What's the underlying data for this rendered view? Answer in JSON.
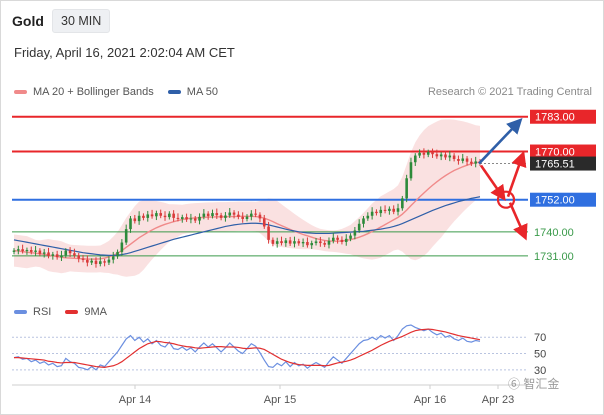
{
  "header": {
    "symbol": "Gold",
    "timeframe": "30 MIN",
    "datetime": "Friday, April 16, 2021 2:02:04 AM CET"
  },
  "legend": {
    "items": [
      {
        "label": "MA 20 + Bollinger Bands",
        "color": "#f08a8a"
      },
      {
        "label": "MA 50",
        "color": "#2f5fa8"
      }
    ]
  },
  "rsi_legend": {
    "items": [
      {
        "label": "RSI",
        "color": "#6b8fe0"
      },
      {
        "label": "9MA",
        "color": "#e23030"
      }
    ]
  },
  "credit": "Research © 2021 Trading Central",
  "watermark": "⑥ 智汇金",
  "colors": {
    "resistance": "#e8262a",
    "pivot": "#2f6fe0",
    "support": "#3a9a4a",
    "arrow_up": "#2f5fa8",
    "arrow_down": "#e8262a",
    "candle_up": "#2d8a3a",
    "candle_down": "#d93a3a"
  },
  "chart_data": {
    "type": "candlestick",
    "price_range": [
      1722,
      1790
    ],
    "x_tick_labels": [
      "Apr 14",
      "Apr 15",
      "Apr 16",
      "Apr 23"
    ],
    "levels": [
      {
        "label": "1783.00",
        "value": 1783.0,
        "kind": "resistance",
        "style": "badge"
      },
      {
        "label": "1770.00",
        "value": 1770.0,
        "kind": "resistance",
        "style": "badge"
      },
      {
        "label": "1765.51",
        "value": 1765.51,
        "kind": "current",
        "style": "badge-dark"
      },
      {
        "label": "1752.00",
        "value": 1752.0,
        "kind": "pivot",
        "style": "badge"
      },
      {
        "label": "1740.00",
        "value": 1740.0,
        "kind": "support",
        "style": "text"
      },
      {
        "label": "1731.00",
        "value": 1731.0,
        "kind": "support",
        "style": "text"
      }
    ],
    "closes": [
      1733,
      1733.5,
      1732.8,
      1733.2,
      1732.5,
      1733,
      1731.8,
      1732.3,
      1731,
      1731.6,
      1730.5,
      1731.2,
      1733,
      1732,
      1731.2,
      1730,
      1729.5,
      1728.5,
      1729.2,
      1728,
      1729,
      1728.5,
      1729.6,
      1730.8,
      1732.5,
      1736,
      1741,
      1745,
      1744,
      1746,
      1745.2,
      1746.5,
      1745.8,
      1747,
      1746,
      1745.5,
      1746.8,
      1745.2,
      1744.8,
      1745.5,
      1744.6,
      1745,
      1744.2,
      1745.6,
      1746.8,
      1745.9,
      1747,
      1746.2,
      1745.2,
      1746.1,
      1747.2,
      1746.4,
      1745.6,
      1744.8,
      1745.7,
      1746.8,
      1746.4,
      1745,
      1742,
      1737,
      1735.5,
      1736.5,
      1735.8,
      1736.8,
      1735.6,
      1736.5,
      1735.7,
      1736.2,
      1735,
      1735.8,
      1736.4,
      1735.8,
      1735.2,
      1736.6,
      1737.8,
      1737,
      1736.2,
      1737.4,
      1738.6,
      1740.5,
      1743,
      1745,
      1746,
      1747.5,
      1747,
      1748.2,
      1747.8,
      1748.6,
      1747.5,
      1748.8,
      1752.5,
      1760,
      1766,
      1768.5,
      1769.5,
      1768.8,
      1769.8,
      1769,
      1768.2,
      1768.9,
      1767.8,
      1768.5,
      1767.2,
      1766.5,
      1767.4,
      1766.2,
      1765.5,
      1766.3,
      1765.51
    ],
    "ma20": [
      1733,
      1732.8,
      1732.6,
      1732.4,
      1732.2,
      1732,
      1731.8,
      1731.6,
      1731.3,
      1731,
      1730.8,
      1730.5,
      1730.3,
      1730.2,
      1730.1,
      1730,
      1729.9,
      1729.8,
      1729.8,
      1729.8,
      1729.9,
      1730.2,
      1730.6,
      1731.2,
      1732,
      1733,
      1734.2,
      1735.4,
      1736.6,
      1737.8,
      1738.8,
      1739.8,
      1740.7,
      1741.5,
      1742.2,
      1742.8,
      1743.3,
      1743.8,
      1744.2,
      1744.6,
      1744.9,
      1745.1,
      1745.2,
      1745.3,
      1745.4,
      1745.5,
      1745.5,
      1745.6,
      1745.6,
      1745.6,
      1745.7,
      1745.7,
      1745.8,
      1745.8,
      1745.8,
      1745.8,
      1745.7,
      1745.5,
      1745.1,
      1744.5,
      1743.8,
      1743,
      1742.3,
      1741.6,
      1740.9,
      1740.2,
      1739.6,
      1739,
      1738.5,
      1738,
      1737.5,
      1737.1,
      1736.8,
      1736.6,
      1736.5,
      1736.5,
      1736.6,
      1736.8,
      1737.1,
      1737.5,
      1738,
      1738.6,
      1739.3,
      1740.1,
      1740.9,
      1741.8,
      1742.7,
      1743.6,
      1744.5,
      1745.4,
      1746.6,
      1748.1,
      1749.8,
      1751.4,
      1753,
      1754.5,
      1756,
      1757.4,
      1758.7,
      1759.9,
      1761,
      1762,
      1762.9,
      1763.6,
      1764.3,
      1764.9,
      1765.4,
      1765.8,
      1766.1
    ],
    "ma50": [
      1737,
      1736.7,
      1736.4,
      1736.1,
      1735.8,
      1735.5,
      1735.2,
      1734.9,
      1734.6,
      1734.3,
      1734,
      1733.7,
      1733.4,
      1733.1,
      1732.8,
      1732.5,
      1732.2,
      1732,
      1731.8,
      1731.6,
      1731.4,
      1731.3,
      1731.2,
      1731.2,
      1731.3,
      1731.5,
      1731.8,
      1732.2,
      1732.7,
      1733.2,
      1733.7,
      1734.2,
      1734.7,
      1735.2,
      1735.7,
      1736.2,
      1736.7,
      1737.2,
      1737.6,
      1738,
      1738.4,
      1738.8,
      1739.2,
      1739.6,
      1740,
      1740.4,
      1740.8,
      1741.2,
      1741.6,
      1742,
      1742.3,
      1742.6,
      1742.8,
      1743,
      1743.1,
      1743.2,
      1743.2,
      1743.1,
      1742.9,
      1742.6,
      1742.2,
      1741.8,
      1741.4,
      1741,
      1740.6,
      1740.3,
      1740,
      1739.8,
      1739.6,
      1739.5,
      1739.4,
      1739.4,
      1739.4,
      1739.4,
      1739.5,
      1739.6,
      1739.7,
      1739.8,
      1739.9,
      1740,
      1740.1,
      1740.2,
      1740.4,
      1740.6,
      1740.8,
      1741,
      1741.3,
      1741.6,
      1742,
      1742.5,
      1743.1,
      1743.8,
      1744.5,
      1745.2,
      1745.9,
      1746.6,
      1747.3,
      1748,
      1748.6,
      1749.2,
      1749.8,
      1750.3,
      1750.8,
      1751.3,
      1751.7,
      1752.1,
      1752.5,
      1752.8,
      1753.1
    ],
    "bands": {
      "width": [
        6,
        6,
        6,
        6,
        5.5,
        5,
        5,
        5.5,
        6,
        6,
        6,
        6,
        5.5,
        5,
        5,
        5,
        5,
        5,
        5,
        5,
        5,
        5.5,
        6,
        7,
        8,
        9.5,
        11,
        12,
        13,
        13.5,
        13,
        12,
        11,
        10,
        9,
        8,
        7,
        6.5,
        6,
        5.5,
        5.5,
        5.5,
        5.5,
        5.5,
        5.5,
        5.5,
        5.5,
        5.5,
        5.5,
        5.5,
        5.5,
        5.5,
        5.5,
        5.5,
        5.5,
        5.5,
        5.5,
        6,
        7,
        8,
        8.5,
        8.5,
        8,
        7.5,
        7,
        6.5,
        6,
        5.5,
        5,
        4.5,
        4.2,
        4,
        4,
        4,
        4,
        4.2,
        4.5,
        5,
        5.5,
        6.5,
        7.5,
        8.5,
        9.5,
        10.5,
        11,
        11.5,
        11.5,
        11.5,
        11.5,
        12,
        14,
        17,
        20,
        22,
        23,
        23.5,
        23.5,
        23,
        22.5,
        22,
        21,
        20,
        19,
        18,
        17,
        16,
        15,
        14,
        13.5
      ]
    },
    "rsi": {
      "y_tick_labels": [
        "70",
        "50",
        "30"
      ],
      "y_ticks": [
        70,
        50,
        30
      ],
      "y_range": [
        20,
        85
      ],
      "rsi": [
        45,
        46,
        43,
        44,
        40,
        42,
        38,
        40,
        36,
        38,
        34,
        35,
        44,
        40,
        38,
        33,
        32,
        30,
        34,
        30,
        36,
        34,
        40,
        46,
        52,
        60,
        68,
        72,
        66,
        70,
        64,
        68,
        62,
        66,
        60,
        58,
        64,
        56,
        55,
        58,
        54,
        57,
        52,
        58,
        63,
        58,
        62,
        57,
        52,
        57,
        63,
        58,
        53,
        50,
        56,
        62,
        59,
        51,
        42,
        34,
        33,
        38,
        35,
        40,
        34,
        39,
        35,
        37,
        32,
        36,
        39,
        36,
        33,
        40,
        46,
        42,
        38,
        44,
        50,
        56,
        62,
        66,
        67,
        70,
        67,
        72,
        69,
        72,
        66,
        72,
        80,
        84,
        85,
        82,
        80,
        78,
        80,
        76,
        73,
        75,
        70,
        72,
        68,
        66,
        69,
        65,
        64,
        66,
        65
      ],
      "ma9": [
        45,
        45,
        44.5,
        44,
        43.5,
        43,
        42.5,
        42,
        40.5,
        40,
        39,
        38.5,
        39,
        39,
        39,
        38,
        37,
        36,
        35,
        34,
        33.5,
        33,
        34,
        35,
        37,
        40,
        44,
        48,
        52,
        56,
        59,
        62,
        63.5,
        65,
        64.5,
        63.5,
        63,
        62,
        60.5,
        59.5,
        58.5,
        58,
        57,
        56.5,
        57,
        57.5,
        58,
        58.5,
        58.5,
        58,
        58,
        58,
        57.5,
        56.5,
        56,
        56.5,
        57,
        56.5,
        55,
        52,
        49,
        46,
        43,
        41,
        39,
        37.5,
        36.5,
        36,
        35.5,
        35.5,
        35.5,
        35.5,
        35,
        35.5,
        37,
        38.5,
        39.5,
        40.5,
        42,
        44,
        46.5,
        49,
        51.5,
        54,
        57,
        60,
        62.5,
        65,
        67,
        69,
        71,
        73.5,
        76,
        78,
        79,
        79.5,
        80,
        79.5,
        78.5,
        77.5,
        76.5,
        75,
        73.5,
        72,
        71,
        70,
        69,
        68,
        67
      ]
    }
  }
}
